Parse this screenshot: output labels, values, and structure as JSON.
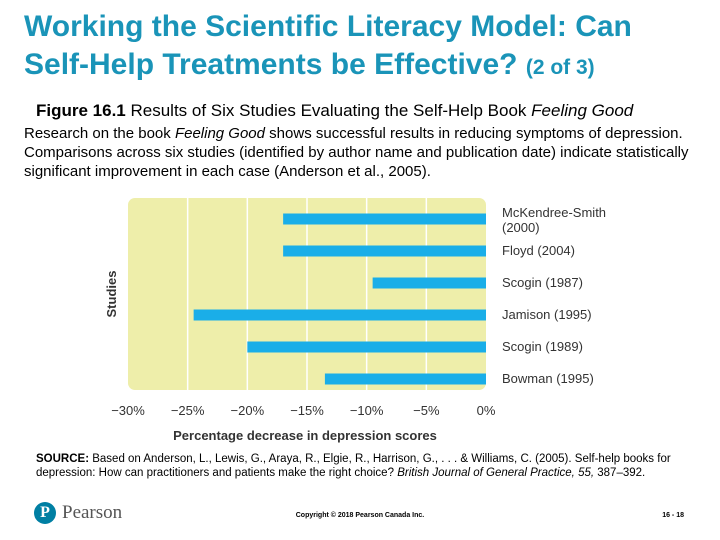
{
  "slide": {
    "title_main": "Working the Scientific Literacy Model: Can Self-Help Treatments be Effective?",
    "title_part": "(2 of 3)",
    "figure_label": "Figure 16.1",
    "figure_title_prefix": "Results of Six Studies Evaluating the Self-Help Book",
    "figure_title_book": "Feeling Good",
    "caption_pre": "Research on the book",
    "caption_book": "Feeling Good",
    "caption_post": "shows successful results in reducing symptoms of depression. Comparisons across six studies (identified by author name and publication date) indicate statistically significant improvement in each case (Anderson et al., 2005).",
    "source_label": "SOURCE:",
    "source_text": "Based on Anderson, L., Lewis, G., Araya, R., Elgie, R., Harrison, G., . . . & Williams, C. (2005). Self-help books for depression: How can practitioners and patients make the right choice?",
    "source_journal": "British Journal of General Practice, 55,",
    "source_pages": "387–392.",
    "logo_text": "Pearson",
    "copyright": "Copyright © 2018 Pearson Canada Inc.",
    "slide_number": "16 - 18"
  },
  "chart_data": {
    "type": "bar",
    "orientation": "horizontal",
    "categories": [
      "McKendree-Smith (2000)",
      "Floyd (2004)",
      "Scogin (1987)",
      "Jamison (1995)",
      "Scogin (1989)",
      "Bowman (1995)"
    ],
    "values": [
      -17,
      -17,
      -9.5,
      -24.5,
      -20,
      -13.5
    ],
    "xlabel": "Percentage decrease in depression scores",
    "ylabel": "Studies",
    "xlim": [
      -30,
      0
    ],
    "xticks": [
      -30,
      -25,
      -20,
      -15,
      -10,
      -5,
      0
    ],
    "xtick_labels": [
      "−30%",
      "−25%",
      "−20%",
      "−15%",
      "−10%",
      "−5%",
      "0%"
    ],
    "grid": true,
    "colors": {
      "bar": "#1aaee8",
      "plot_bg": "#eeeeaa",
      "grid": "#ffffff"
    }
  }
}
